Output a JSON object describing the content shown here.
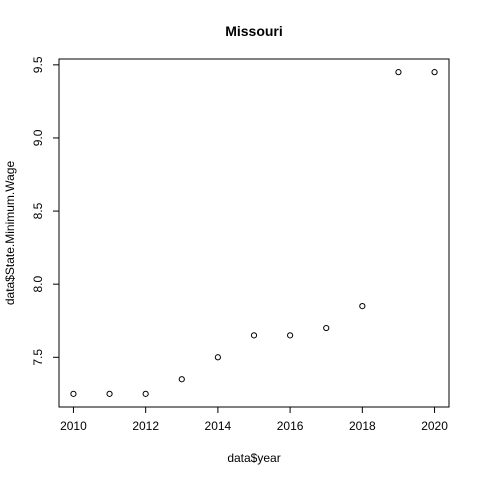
{
  "chart_data": {
    "type": "scatter",
    "title": "Missouri",
    "xlabel": "data$year",
    "ylabel": "data$State.Minimum.Wage",
    "xlim": [
      2009.6,
      2020.4
    ],
    "ylim": [
      7.16,
      9.54
    ],
    "xticks": [
      2010,
      2012,
      2014,
      2016,
      2018,
      2020
    ],
    "yticks": [
      7.5,
      8.0,
      8.5,
      9.0,
      9.5
    ],
    "xtick_labels": [
      "2010",
      "2012",
      "2014",
      "2016",
      "2018",
      "2020"
    ],
    "ytick_labels": [
      "7.5",
      "8.0",
      "8.5",
      "9.0",
      "9.5"
    ],
    "grid": false,
    "marker": "open-circle",
    "x": [
      2010,
      2011,
      2012,
      2013,
      2014,
      2015,
      2016,
      2017,
      2018,
      2019,
      2020
    ],
    "y": [
      7.25,
      7.25,
      7.25,
      7.35,
      7.5,
      7.65,
      7.65,
      7.7,
      7.85,
      9.45,
      9.45
    ]
  }
}
